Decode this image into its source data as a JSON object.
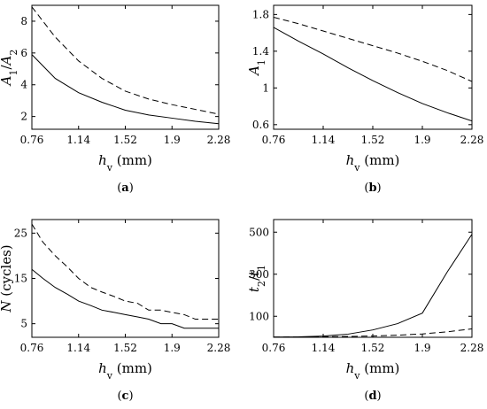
{
  "figure": {
    "label_open": "(",
    "label_close": ")"
  },
  "chart_data": [
    {
      "type": "line",
      "panel": "a",
      "ylabel": "A1/A2",
      "xlabel": "hv (mm)",
      "xlim": [
        0.76,
        2.28
      ],
      "ylim": [
        1.2,
        9
      ],
      "xticks": [
        0.76,
        1.14,
        1.52,
        1.9,
        2.28
      ],
      "xtick_labels": [
        "0.76",
        "1.14",
        "1.52",
        "1.9",
        "2.28"
      ],
      "yticks": [
        2,
        4,
        6,
        8
      ],
      "ytick_labels": [
        "2",
        "4",
        "6",
        "8"
      ],
      "series": [
        {
          "style": "solid",
          "x": [
            0.76,
            0.95,
            1.14,
            1.33,
            1.52,
            1.71,
            1.9,
            2.09,
            2.28
          ],
          "y": [
            5.9,
            4.4,
            3.5,
            2.9,
            2.4,
            2.1,
            1.9,
            1.7,
            1.55
          ]
        },
        {
          "style": "dashed",
          "x": [
            0.76,
            0.95,
            1.14,
            1.33,
            1.52,
            1.71,
            1.9,
            2.09,
            2.28
          ],
          "y": [
            8.9,
            7.0,
            5.5,
            4.4,
            3.6,
            3.1,
            2.75,
            2.45,
            2.15
          ]
        }
      ]
    },
    {
      "type": "line",
      "panel": "b",
      "ylabel": "A1",
      "xlabel": "hv (mm)",
      "xlim": [
        0.76,
        2.28
      ],
      "ylim": [
        0.55,
        1.9
      ],
      "xticks": [
        0.76,
        1.14,
        1.52,
        1.9,
        2.28
      ],
      "xtick_labels": [
        "0.76",
        "1.14",
        "1.52",
        "1.9",
        "2.28"
      ],
      "yticks": [
        0.6,
        1,
        1.4,
        1.8
      ],
      "ytick_labels": [
        "0.6",
        "1",
        "1.4",
        "1.8"
      ],
      "series": [
        {
          "style": "solid",
          "x": [
            0.76,
            0.95,
            1.14,
            1.33,
            1.52,
            1.71,
            1.9,
            2.09,
            2.28
          ],
          "y": [
            1.66,
            1.51,
            1.37,
            1.22,
            1.08,
            0.95,
            0.83,
            0.73,
            0.64
          ]
        },
        {
          "style": "dashed",
          "x": [
            0.76,
            0.95,
            1.14,
            1.33,
            1.52,
            1.71,
            1.9,
            2.09,
            2.28
          ],
          "y": [
            1.77,
            1.7,
            1.62,
            1.54,
            1.46,
            1.38,
            1.29,
            1.19,
            1.07
          ]
        }
      ]
    },
    {
      "type": "line",
      "panel": "c",
      "ylabel": "N (cycles)",
      "xlabel": "hv (mm)",
      "xlim": [
        0.76,
        2.28
      ],
      "ylim": [
        2,
        28
      ],
      "xticks": [
        0.76,
        1.14,
        1.52,
        1.9,
        2.28
      ],
      "xtick_labels": [
        "0.76",
        "1.14",
        "1.52",
        "1.9",
        "2.28"
      ],
      "yticks": [
        5,
        15,
        25
      ],
      "ytick_labels": [
        "5",
        "15",
        "25"
      ],
      "series": [
        {
          "style": "solid",
          "x": [
            0.76,
            0.85,
            0.95,
            1.05,
            1.14,
            1.24,
            1.33,
            1.43,
            1.52,
            1.62,
            1.71,
            1.81,
            1.9,
            2.0,
            2.09,
            2.19,
            2.28
          ],
          "y": [
            17,
            15,
            13,
            11.5,
            10,
            9,
            8,
            7.5,
            7,
            6.5,
            6,
            5,
            5,
            4,
            4,
            4,
            4
          ]
        },
        {
          "style": "dashed",
          "x": [
            0.76,
            0.85,
            0.95,
            1.05,
            1.14,
            1.24,
            1.33,
            1.43,
            1.52,
            1.62,
            1.71,
            1.81,
            1.9,
            2.0,
            2.09,
            2.19,
            2.28
          ],
          "y": [
            27,
            23,
            20,
            17.5,
            15,
            13,
            12,
            11,
            10,
            9.5,
            8,
            8,
            7.5,
            7,
            6,
            6,
            6
          ]
        }
      ]
    },
    {
      "type": "line",
      "panel": "d",
      "ylabel": "t2/t1",
      "xlabel": "hv (mm)",
      "xlim": [
        0.76,
        2.28
      ],
      "ylim": [
        0,
        560
      ],
      "xticks": [
        0.76,
        1.14,
        1.52,
        1.9,
        2.28
      ],
      "xtick_labels": [
        "0.76",
        "1.14",
        "1.52",
        "1.9",
        "2.28"
      ],
      "yticks": [
        100,
        300,
        500
      ],
      "ytick_labels": [
        "100",
        "300",
        "500"
      ],
      "series": [
        {
          "style": "solid",
          "x": [
            0.76,
            0.95,
            1.14,
            1.33,
            1.52,
            1.71,
            1.9,
            2.09,
            2.28
          ],
          "y": [
            1,
            2,
            6,
            15,
            35,
            65,
            115,
            310,
            490
          ]
        },
        {
          "style": "dashed",
          "x": [
            0.76,
            0.95,
            1.14,
            1.33,
            1.52,
            1.71,
            1.9,
            2.09,
            2.28
          ],
          "y": [
            1,
            1.5,
            2.5,
            4,
            6,
            10,
            16,
            26,
            40
          ]
        }
      ]
    }
  ]
}
